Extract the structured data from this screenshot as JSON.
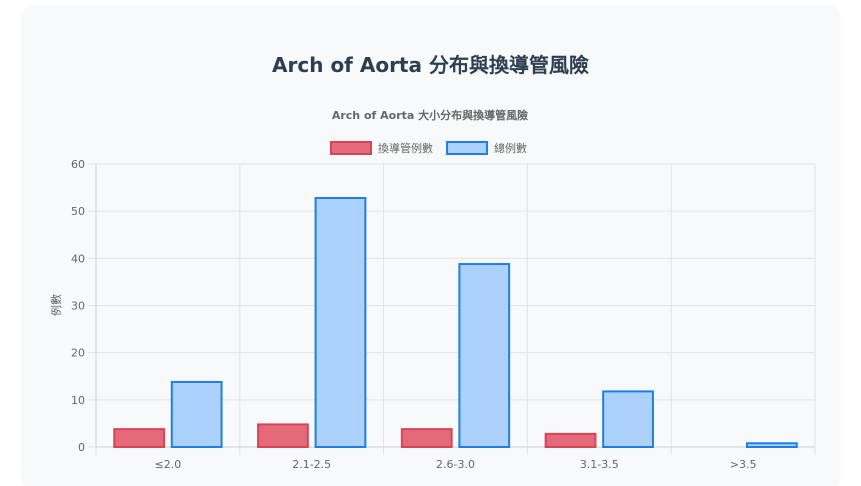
{
  "page": {
    "title": "Arch of Aorta 分布與換導管風險"
  },
  "chart_data": {
    "type": "bar",
    "title": "Arch of Aorta 大小分布與換導管風險",
    "xlabel": "",
    "ylabel": "例數",
    "categories": [
      "≤2.0",
      "2.1-2.5",
      "2.6-3.0",
      "3.1-3.5",
      ">3.5"
    ],
    "ylim": [
      0,
      60
    ],
    "yticks": [
      0,
      10,
      20,
      30,
      40,
      50,
      60
    ],
    "grid": true,
    "legend_position": "top",
    "series": [
      {
        "name": "換導管例數",
        "values": [
          4,
          5,
          4,
          3,
          0
        ],
        "color": "#e05a6b",
        "fill": "#e46a79",
        "border": "#d64556"
      },
      {
        "name": "總例數",
        "values": [
          14,
          53,
          39,
          12,
          1
        ],
        "color": "#1e7ee6",
        "fill": "#acd2fb",
        "border": "#1e7ee6"
      }
    ]
  }
}
